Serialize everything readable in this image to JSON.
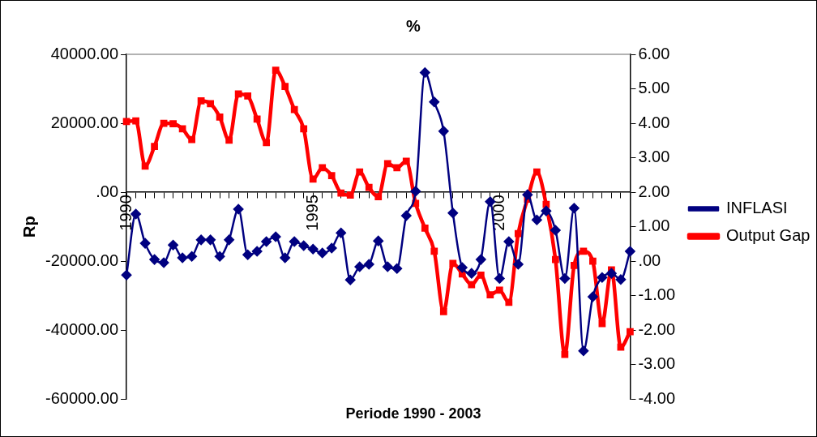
{
  "chart_data": {
    "type": "line",
    "title": "%",
    "xlabel": "Periode 1990 - 2003",
    "ylabel": "Rp",
    "categories": [
      "1990",
      null,
      null,
      null,
      null,
      null,
      null,
      null,
      null,
      null,
      null,
      null,
      null,
      null,
      null,
      null,
      null,
      null,
      null,
      null,
      "1995",
      null,
      null,
      null,
      null,
      null,
      null,
      null,
      null,
      null,
      null,
      null,
      null,
      null,
      null,
      null,
      null,
      null,
      null,
      null,
      "2000",
      null,
      null,
      null,
      null,
      null,
      null,
      null,
      null,
      null,
      null,
      null,
      null,
      null,
      null
    ],
    "series": [
      {
        "name": "Output Gap",
        "color": "#ff0000",
        "marker": "square",
        "values": [
          20500,
          20700,
          7600,
          13300,
          20000,
          19900,
          18400,
          15300,
          26500,
          25700,
          21800,
          15100,
          28500,
          27900,
          21200,
          14400,
          35400,
          30700,
          24000,
          18400,
          3800,
          7100,
          4800,
          -200,
          -800,
          5900,
          1400,
          -1300,
          8300,
          7100,
          9000,
          -3200,
          -10400,
          -17100,
          -34600,
          -20600,
          -23700,
          -26800,
          -24000,
          -29700,
          -28400,
          -31900,
          -12000,
          -2000,
          5900,
          -3500,
          -19500,
          -47000,
          -21200,
          -17100,
          -20000,
          -38100,
          -22500,
          -44900,
          -40400
        ]
      },
      {
        "name": "INFLASI",
        "color": "#000080",
        "marker": "diamond",
        "axis": "y2",
        "values": [
          -0.4,
          1.37,
          0.52,
          0.05,
          -0.04,
          0.47,
          0.1,
          0.14,
          0.62,
          0.62,
          0.14,
          0.62,
          1.51,
          0.19,
          0.29,
          0.57,
          0.71,
          0.1,
          0.57,
          0.45,
          0.35,
          0.24,
          0.38,
          0.82,
          -0.54,
          -0.16,
          -0.09,
          0.59,
          -0.16,
          -0.21,
          1.32,
          2.03,
          5.47,
          4.62,
          3.77,
          1.4,
          -0.18,
          -0.35,
          0.05,
          1.73,
          -0.5,
          0.57,
          -0.09,
          1.93,
          1.2,
          1.46,
          0.9,
          -0.5,
          1.54,
          -2.6,
          -1.03,
          -0.47,
          -0.35,
          -0.53,
          0.29
        ]
      }
    ],
    "ylim": [
      -60000,
      40000
    ],
    "yticks": [
      {
        "value": -60000,
        "label": "-60000.00"
      },
      {
        "value": -40000,
        "label": "-40000.00"
      },
      {
        "value": -20000,
        "label": "-20000.00"
      },
      {
        "value": 0,
        "label": ".00"
      },
      {
        "value": 20000,
        "label": "20000.00"
      },
      {
        "value": 40000,
        "label": "40000.00"
      }
    ],
    "y2lim": [
      -4,
      6
    ],
    "y2ticks": [
      {
        "value": -4,
        "label": "-4.00"
      },
      {
        "value": -3,
        "label": "-3.00"
      },
      {
        "value": -2,
        "label": "-2.00"
      },
      {
        "value": -1,
        "label": "-1.00"
      },
      {
        "value": 0,
        "label": ".00"
      },
      {
        "value": 1,
        "label": "1.00"
      },
      {
        "value": 2,
        "label": "2.00"
      },
      {
        "value": 3,
        "label": "3.00"
      },
      {
        "value": 4,
        "label": "4.00"
      },
      {
        "value": 5,
        "label": "5.00"
      },
      {
        "value": 6,
        "label": "6.00"
      }
    ],
    "grid": false,
    "legend": "right"
  }
}
